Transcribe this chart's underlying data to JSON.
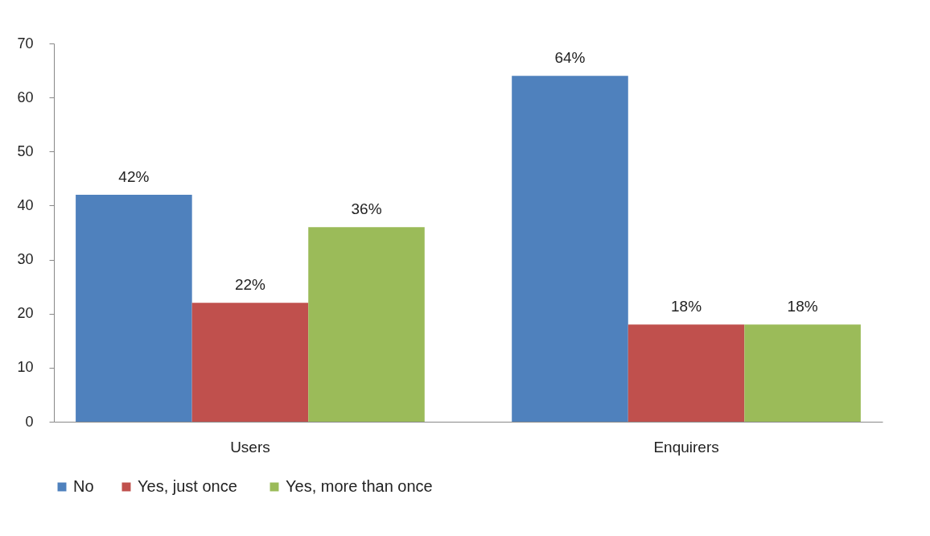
{
  "chart_data": {
    "type": "bar",
    "categories": [
      "Users",
      "Enquirers"
    ],
    "series": [
      {
        "name": "No",
        "color": "#4f81bd",
        "values": [
          42,
          64
        ],
        "value_labels": [
          "42%",
          "64%"
        ]
      },
      {
        "name": "Yes,  just once",
        "color": "#c0504d",
        "values": [
          22,
          18
        ],
        "value_labels": [
          "22%",
          "18%"
        ]
      },
      {
        "name": "Yes, more than once",
        "color": "#9bbb59",
        "values": [
          36,
          18
        ],
        "value_labels": [
          "36%",
          "18%"
        ]
      }
    ],
    "ylim": [
      0,
      70
    ],
    "yticks": [
      0,
      10,
      20,
      30,
      40,
      50,
      60,
      70
    ],
    "legend": "bottom"
  }
}
